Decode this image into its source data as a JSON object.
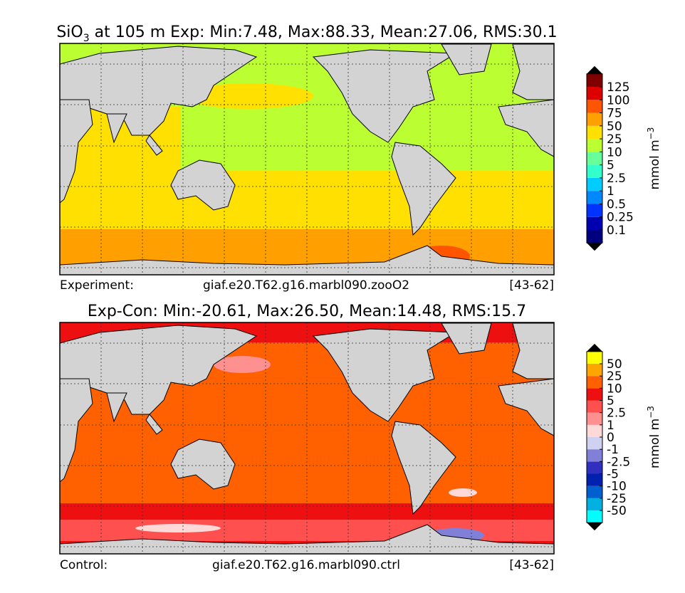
{
  "panels": [
    {
      "title": {
        "text": "SiO",
        "subscript": "3",
        "rest": " at 105 m Exp: Min:7.48, Max:88.33, Mean:27.06, RMS:30.1"
      },
      "colorbar": {
        "levels": [
          0.1,
          0.25,
          0.5,
          1,
          2.5,
          5,
          10,
          25,
          50,
          75,
          100,
          125
        ],
        "colors": [
          "#00007f",
          "#0000b0",
          "#0033ff",
          "#0088ff",
          "#00ccff",
          "#33ffcc",
          "#66ff99",
          "#bbff33",
          "#ffe000",
          "#ffa000",
          "#ff5500",
          "#dd0000",
          "#800000"
        ],
        "extend_color": "#000000",
        "units": "mmol m",
        "units_exponent": "−3"
      },
      "footer": {
        "label": "Experiment:",
        "case": "giaf.e20.T62.g16.marbl090.zooO2",
        "years": "[43-62]"
      }
    },
    {
      "title": {
        "text": "Exp-Con: Min:-20.61, Max:26.50, Mean:14.48, RMS:15.7"
      },
      "colorbar": {
        "levels": [
          -50,
          -25,
          -10,
          -5,
          -2.5,
          -1,
          0,
          1,
          2.5,
          5,
          10,
          25,
          50
        ],
        "colors": [
          "#00ffff",
          "#00b0e0",
          "#0060d0",
          "#0020b0",
          "#3030c0",
          "#8080d8",
          "#d0d0f0",
          "#ffd8d8",
          "#ff9090",
          "#ff5050",
          "#ee1010",
          "#ff6000",
          "#ffa500",
          "#ffff00"
        ],
        "extend_color": "#000000",
        "units": "mmol m",
        "units_exponent": "−3"
      },
      "footer": {
        "label": "Control:",
        "case": "giaf.e20.T62.g16.marbl090.ctrl",
        "years": "[43-62]"
      }
    }
  ]
}
